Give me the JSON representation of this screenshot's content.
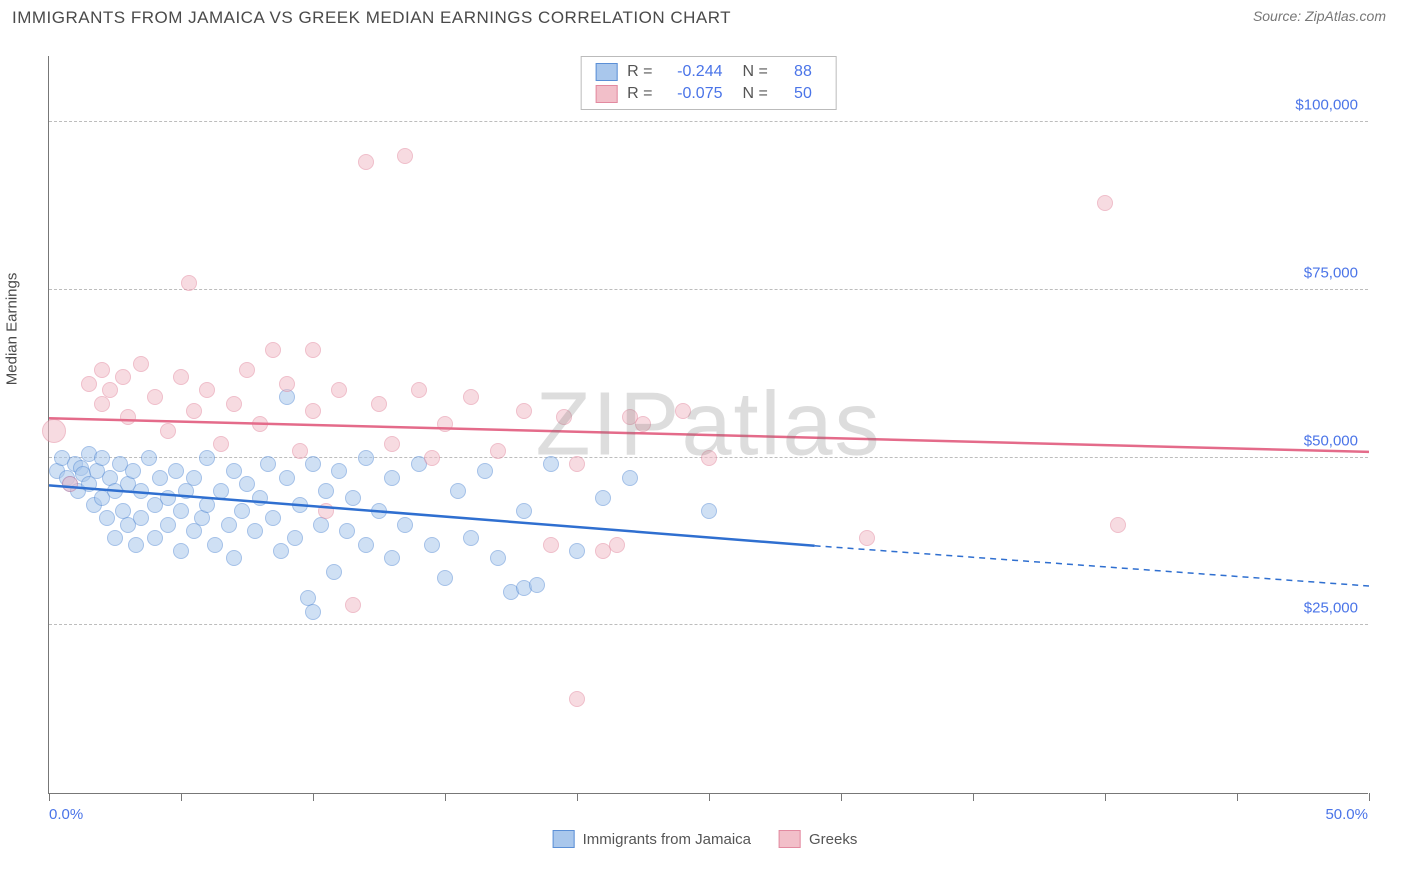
{
  "title": "IMMIGRANTS FROM JAMAICA VS GREEK MEDIAN EARNINGS CORRELATION CHART",
  "source": "Source: ZipAtlas.com",
  "watermark": "ZIPatlas",
  "chart": {
    "type": "scatter",
    "ylabel": "Median Earnings",
    "xlim": [
      0,
      50
    ],
    "ylim": [
      0,
      110000
    ],
    "yticks": [
      25000,
      50000,
      75000,
      100000
    ],
    "ytick_labels": [
      "$25,000",
      "$50,000",
      "$75,000",
      "$100,000"
    ],
    "xtick_positions": [
      0,
      5,
      10,
      15,
      20,
      25,
      30,
      35,
      40,
      45,
      50
    ],
    "xend_labels": [
      "0.0%",
      "50.0%"
    ],
    "background_color": "#ffffff",
    "grid_color": "#bdbdbd",
    "axis_color": "#777777",
    "label_color": "#4a74e8",
    "text_color": "#4a4a4a",
    "marker_radius": 8,
    "marker_opacity": 0.55,
    "series": [
      {
        "name": "Immigrants from Jamaica",
        "color_fill": "#a9c7ec",
        "color_stroke": "#5b8fd6",
        "trend_color": "#2f6fd0",
        "R": "-0.244",
        "N": "88",
        "trend": {
          "x1": 0,
          "y1": 46000,
          "x2": 29,
          "y2": 37000,
          "dash_x2": 50,
          "dash_y2": 31000
        },
        "points": [
          {
            "x": 0.3,
            "y": 48000
          },
          {
            "x": 0.5,
            "y": 50000
          },
          {
            "x": 0.7,
            "y": 47000
          },
          {
            "x": 0.8,
            "y": 46000
          },
          {
            "x": 1.0,
            "y": 49000
          },
          {
            "x": 1.1,
            "y": 45000
          },
          {
            "x": 1.2,
            "y": 48500
          },
          {
            "x": 1.3,
            "y": 47500
          },
          {
            "x": 1.5,
            "y": 46000
          },
          {
            "x": 1.5,
            "y": 50500
          },
          {
            "x": 1.7,
            "y": 43000
          },
          {
            "x": 1.8,
            "y": 48000
          },
          {
            "x": 2.0,
            "y": 44000
          },
          {
            "x": 2.0,
            "y": 50000
          },
          {
            "x": 2.2,
            "y": 41000
          },
          {
            "x": 2.3,
            "y": 47000
          },
          {
            "x": 2.5,
            "y": 38000
          },
          {
            "x": 2.5,
            "y": 45000
          },
          {
            "x": 2.7,
            "y": 49000
          },
          {
            "x": 2.8,
            "y": 42000
          },
          {
            "x": 3.0,
            "y": 40000
          },
          {
            "x": 3.0,
            "y": 46000
          },
          {
            "x": 3.2,
            "y": 48000
          },
          {
            "x": 3.3,
            "y": 37000
          },
          {
            "x": 3.5,
            "y": 41000
          },
          {
            "x": 3.5,
            "y": 45000
          },
          {
            "x": 3.8,
            "y": 50000
          },
          {
            "x": 4.0,
            "y": 38000
          },
          {
            "x": 4.0,
            "y": 43000
          },
          {
            "x": 4.2,
            "y": 47000
          },
          {
            "x": 4.5,
            "y": 40000
          },
          {
            "x": 4.5,
            "y": 44000
          },
          {
            "x": 4.8,
            "y": 48000
          },
          {
            "x": 5.0,
            "y": 36000
          },
          {
            "x": 5.0,
            "y": 42000
          },
          {
            "x": 5.2,
            "y": 45000
          },
          {
            "x": 5.5,
            "y": 39000
          },
          {
            "x": 5.5,
            "y": 47000
          },
          {
            "x": 5.8,
            "y": 41000
          },
          {
            "x": 6.0,
            "y": 43000
          },
          {
            "x": 6.0,
            "y": 50000
          },
          {
            "x": 6.3,
            "y": 37000
          },
          {
            "x": 6.5,
            "y": 45000
          },
          {
            "x": 6.8,
            "y": 40000
          },
          {
            "x": 7.0,
            "y": 48000
          },
          {
            "x": 7.0,
            "y": 35000
          },
          {
            "x": 7.3,
            "y": 42000
          },
          {
            "x": 7.5,
            "y": 46000
          },
          {
            "x": 7.8,
            "y": 39000
          },
          {
            "x": 8.0,
            "y": 44000
          },
          {
            "x": 8.3,
            "y": 49000
          },
          {
            "x": 8.5,
            "y": 41000
          },
          {
            "x": 8.8,
            "y": 36000
          },
          {
            "x": 9.0,
            "y": 47000
          },
          {
            "x": 9.0,
            "y": 59000
          },
          {
            "x": 9.3,
            "y": 38000
          },
          {
            "x": 9.5,
            "y": 43000
          },
          {
            "x": 9.8,
            "y": 29000
          },
          {
            "x": 10.0,
            "y": 49000
          },
          {
            "x": 10.3,
            "y": 40000
          },
          {
            "x": 10.5,
            "y": 45000
          },
          {
            "x": 10.8,
            "y": 33000
          },
          {
            "x": 10.0,
            "y": 27000
          },
          {
            "x": 11.0,
            "y": 48000
          },
          {
            "x": 11.3,
            "y": 39000
          },
          {
            "x": 11.5,
            "y": 44000
          },
          {
            "x": 12.0,
            "y": 50000
          },
          {
            "x": 12.0,
            "y": 37000
          },
          {
            "x": 12.5,
            "y": 42000
          },
          {
            "x": 13.0,
            "y": 47000
          },
          {
            "x": 13.0,
            "y": 35000
          },
          {
            "x": 13.5,
            "y": 40000
          },
          {
            "x": 14.0,
            "y": 49000
          },
          {
            "x": 14.5,
            "y": 37000
          },
          {
            "x": 15.0,
            "y": 32000
          },
          {
            "x": 15.5,
            "y": 45000
          },
          {
            "x": 16.0,
            "y": 38000
          },
          {
            "x": 16.5,
            "y": 48000
          },
          {
            "x": 17.0,
            "y": 35000
          },
          {
            "x": 17.5,
            "y": 30000
          },
          {
            "x": 18.0,
            "y": 42000
          },
          {
            "x": 18.0,
            "y": 30500
          },
          {
            "x": 18.5,
            "y": 31000
          },
          {
            "x": 19.0,
            "y": 49000
          },
          {
            "x": 20.0,
            "y": 36000
          },
          {
            "x": 21.0,
            "y": 44000
          },
          {
            "x": 22.0,
            "y": 47000
          },
          {
            "x": 25.0,
            "y": 42000
          }
        ]
      },
      {
        "name": "Greeks",
        "color_fill": "#f2bfc9",
        "color_stroke": "#e28aa0",
        "trend_color": "#e46b8a",
        "R": "-0.075",
        "N": "50",
        "trend": {
          "x1": 0,
          "y1": 56000,
          "x2": 50,
          "y2": 51000
        },
        "points": [
          {
            "x": 0.2,
            "y": 54000,
            "r": 12
          },
          {
            "x": 0.8,
            "y": 46000
          },
          {
            "x": 1.5,
            "y": 61000
          },
          {
            "x": 2.0,
            "y": 58000
          },
          {
            "x": 2.0,
            "y": 63000
          },
          {
            "x": 2.3,
            "y": 60000
          },
          {
            "x": 2.8,
            "y": 62000
          },
          {
            "x": 3.0,
            "y": 56000
          },
          {
            "x": 3.5,
            "y": 64000
          },
          {
            "x": 4.0,
            "y": 59000
          },
          {
            "x": 4.5,
            "y": 54000
          },
          {
            "x": 5.0,
            "y": 62000
          },
          {
            "x": 5.3,
            "y": 76000
          },
          {
            "x": 5.5,
            "y": 57000
          },
          {
            "x": 6.0,
            "y": 60000
          },
          {
            "x": 6.5,
            "y": 52000
          },
          {
            "x": 7.0,
            "y": 58000
          },
          {
            "x": 7.5,
            "y": 63000
          },
          {
            "x": 8.0,
            "y": 55000
          },
          {
            "x": 8.5,
            "y": 66000
          },
          {
            "x": 9.0,
            "y": 61000
          },
          {
            "x": 9.5,
            "y": 51000
          },
          {
            "x": 10.0,
            "y": 57000
          },
          {
            "x": 10.0,
            "y": 66000
          },
          {
            "x": 10.5,
            "y": 42000
          },
          {
            "x": 11.0,
            "y": 60000
          },
          {
            "x": 11.5,
            "y": 28000
          },
          {
            "x": 12.0,
            "y": 94000
          },
          {
            "x": 12.5,
            "y": 58000
          },
          {
            "x": 13.0,
            "y": 52000
          },
          {
            "x": 13.5,
            "y": 95000
          },
          {
            "x": 14.0,
            "y": 60000
          },
          {
            "x": 14.5,
            "y": 50000
          },
          {
            "x": 15.0,
            "y": 55000
          },
          {
            "x": 16.0,
            "y": 59000
          },
          {
            "x": 17.0,
            "y": 51000
          },
          {
            "x": 18.0,
            "y": 57000
          },
          {
            "x": 19.0,
            "y": 37000
          },
          {
            "x": 19.5,
            "y": 56000
          },
          {
            "x": 20.0,
            "y": 49000
          },
          {
            "x": 21.0,
            "y": 36000
          },
          {
            "x": 21.5,
            "y": 37000
          },
          {
            "x": 22.0,
            "y": 56000
          },
          {
            "x": 22.5,
            "y": 55000
          },
          {
            "x": 20.0,
            "y": 14000
          },
          {
            "x": 25.0,
            "y": 50000
          },
          {
            "x": 31.0,
            "y": 38000
          },
          {
            "x": 40.0,
            "y": 88000
          },
          {
            "x": 40.5,
            "y": 40000
          },
          {
            "x": 24.0,
            "y": 57000
          }
        ]
      }
    ]
  }
}
